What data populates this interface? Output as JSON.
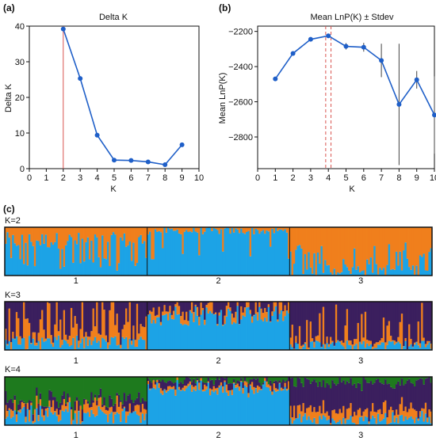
{
  "colors": {
    "line": "#1f5fc8",
    "marker": "#1f5fc8",
    "ref_line": "#d9534f",
    "axis": "#111111",
    "orange": "#f07f1c",
    "blue": "#1ca3e6",
    "purple": "#3b1f5e",
    "green": "#1e7a1e"
  },
  "panels": {
    "a": "(a)",
    "b": "(b)",
    "c": "(c)"
  },
  "chart_data": [
    {
      "id": "delta_k",
      "type": "line",
      "title": "Delta K",
      "xlabel": "K",
      "ylabel": "Delta K",
      "xlim": [
        0,
        10
      ],
      "ylim": [
        0,
        40
      ],
      "xticks": [
        0,
        1,
        2,
        3,
        4,
        5,
        6,
        7,
        8,
        9,
        10
      ],
      "yticks": [
        0,
        10,
        20,
        30,
        40
      ],
      "x": [
        2,
        3,
        4,
        5,
        6,
        7,
        8,
        9
      ],
      "y": [
        39.2,
        25.3,
        9.4,
        2.4,
        2.3,
        1.9,
        1.1,
        6.7
      ],
      "reference_line_x": 2,
      "grid": false
    },
    {
      "id": "mean_lnpk",
      "type": "line",
      "title": "Mean LnP(K) ± Stdev",
      "xlabel": "K",
      "ylabel": "Mean LnP(K)",
      "xlim": [
        0,
        10
      ],
      "ylim": [
        -2980,
        -2170
      ],
      "xticks": [
        0,
        1,
        2,
        3,
        4,
        5,
        6,
        7,
        8,
        9,
        10
      ],
      "ytick_values": [
        -2800,
        -2600,
        -2400,
        -2200
      ],
      "ytick_labels": [
        "−2800",
        "−2600",
        "−2400",
        "−2200"
      ],
      "x": [
        1,
        2,
        3,
        4,
        5,
        6,
        7,
        8,
        9,
        10
      ],
      "y": [
        -2470,
        -2325,
        -2245,
        -2225,
        -2285,
        -2290,
        -2365,
        -2615,
        -2475,
        -2675
      ],
      "stdev": [
        0,
        0,
        0,
        8,
        18,
        25,
        95,
        345,
        50,
        220
      ],
      "reference_lines_x": [
        3.85,
        4.15
      ],
      "grid": false
    },
    {
      "id": "structure_bars",
      "type": "bar",
      "stacked": true,
      "population_labels": [
        "1",
        "2",
        "3"
      ],
      "population_sizes": [
        78,
        78,
        78
      ],
      "plots": [
        {
          "label": "K=2",
          "k": 2
        },
        {
          "label": "K=3",
          "k": 3
        },
        {
          "label": "K=4",
          "k": 4
        }
      ]
    }
  ]
}
